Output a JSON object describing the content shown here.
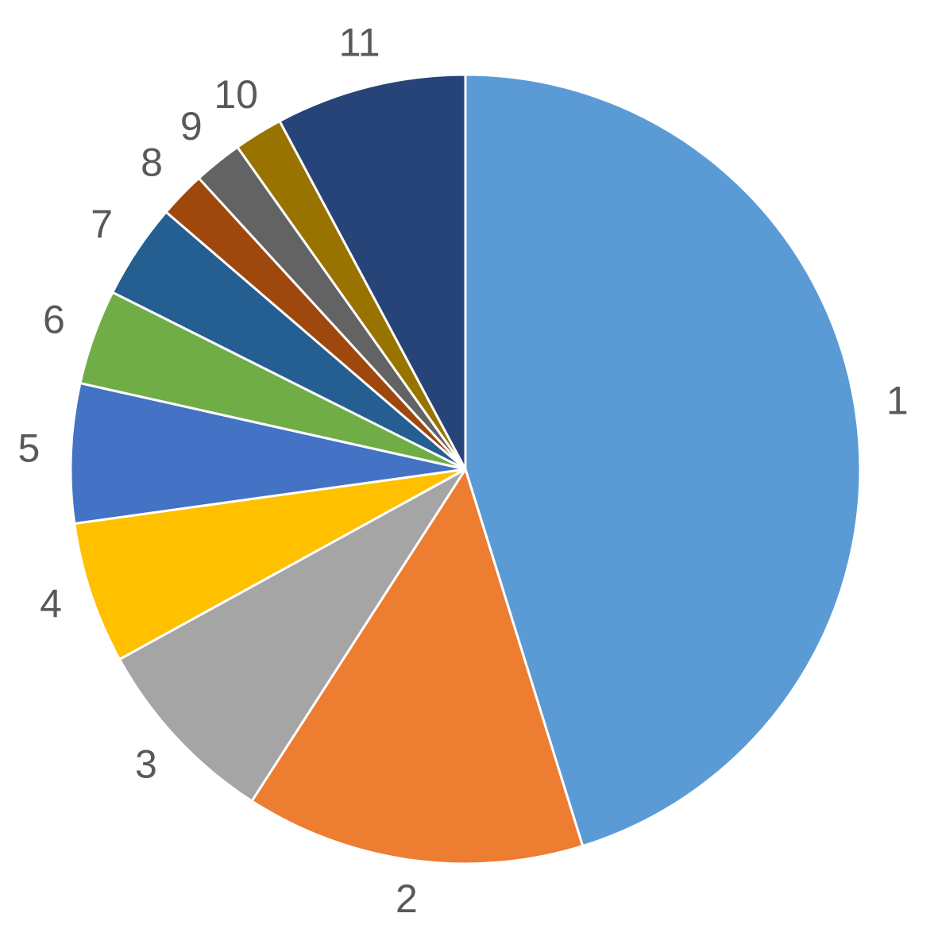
{
  "chart_data": {
    "type": "pie",
    "categories": [
      "1",
      "2",
      "3",
      "4",
      "5",
      "6",
      "7",
      "8",
      "9",
      "10",
      "11"
    ],
    "values": [
      45.2,
      13.9,
      7.9,
      5.8,
      5.7,
      3.9,
      3.9,
      1.9,
      2.0,
      2.0,
      7.8
    ],
    "colors": [
      "#5b9bd5",
      "#ed7d31",
      "#a5a5a5",
      "#ffc000",
      "#4472c4",
      "#70ad47",
      "#255e91",
      "#9e480e",
      "#636363",
      "#997300",
      "#264478"
    ]
  }
}
